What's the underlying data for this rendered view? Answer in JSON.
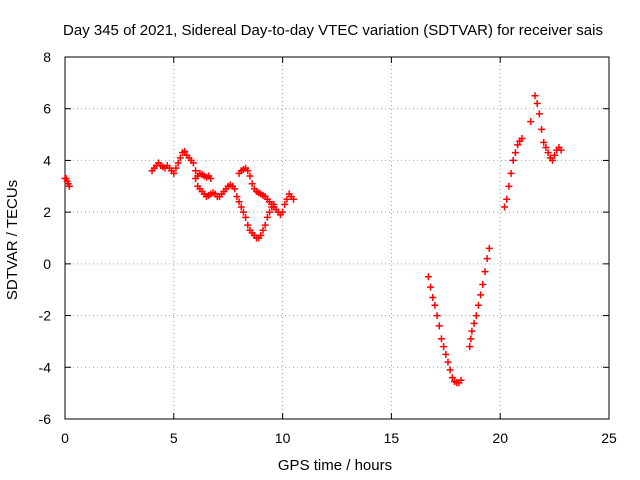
{
  "chart_data": {
    "type": "scatter",
    "title": "Day 345 of 2021, Sidereal Day-to-day VTEC variation (SDTVAR) for receiver sais",
    "xlabel": "GPS time / hours",
    "ylabel": "SDTVAR / TECUs",
    "xlim": [
      0,
      25
    ],
    "ylim": [
      -6,
      8
    ],
    "x_ticks": [
      0,
      5,
      10,
      15,
      20,
      25
    ],
    "y_ticks": [
      -6,
      -4,
      -2,
      0,
      2,
      4,
      6,
      8
    ],
    "grid": true,
    "marker": "+",
    "series": [
      {
        "color": "#ff0000",
        "points": [
          [
            0.0,
            3.3
          ],
          [
            0.05,
            3.3
          ],
          [
            0.1,
            3.2
          ],
          [
            0.15,
            3.1
          ],
          [
            0.2,
            3.0
          ],
          [
            4.0,
            3.6
          ],
          [
            4.1,
            3.7
          ],
          [
            4.2,
            3.8
          ],
          [
            4.3,
            3.9
          ],
          [
            4.4,
            3.8
          ],
          [
            4.5,
            3.75
          ],
          [
            4.6,
            3.7
          ],
          [
            4.7,
            3.8
          ],
          [
            4.8,
            3.7
          ],
          [
            4.9,
            3.6
          ],
          [
            5.0,
            3.5
          ],
          [
            5.1,
            3.7
          ],
          [
            5.2,
            3.9
          ],
          [
            5.3,
            4.1
          ],
          [
            5.4,
            4.3
          ],
          [
            5.5,
            4.35
          ],
          [
            5.6,
            4.2
          ],
          [
            5.7,
            4.1
          ],
          [
            5.8,
            4.0
          ],
          [
            5.9,
            3.9
          ],
          [
            6.0,
            3.6
          ],
          [
            6.1,
            3.4
          ],
          [
            6.0,
            3.3
          ],
          [
            6.1,
            3.0
          ],
          [
            6.2,
            2.9
          ],
          [
            6.3,
            2.8
          ],
          [
            6.4,
            2.7
          ],
          [
            6.5,
            2.6
          ],
          [
            6.6,
            2.65
          ],
          [
            6.7,
            2.7
          ],
          [
            6.8,
            2.75
          ],
          [
            6.9,
            2.7
          ],
          [
            7.0,
            2.6
          ],
          [
            7.1,
            2.6
          ],
          [
            7.2,
            2.7
          ],
          [
            7.3,
            2.8
          ],
          [
            7.4,
            2.9
          ],
          [
            7.5,
            3.0
          ],
          [
            7.6,
            3.05
          ],
          [
            7.7,
            3.0
          ],
          [
            7.8,
            2.9
          ],
          [
            6.2,
            3.5
          ],
          [
            6.3,
            3.45
          ],
          [
            6.4,
            3.4
          ],
          [
            6.5,
            3.35
          ],
          [
            6.6,
            3.4
          ],
          [
            6.7,
            3.3
          ],
          [
            7.9,
            2.6
          ],
          [
            8.0,
            2.4
          ],
          [
            8.1,
            2.2
          ],
          [
            8.2,
            2.0
          ],
          [
            8.3,
            1.8
          ],
          [
            8.4,
            1.5
          ],
          [
            8.5,
            1.3
          ],
          [
            8.6,
            1.2
          ],
          [
            8.7,
            1.1
          ],
          [
            8.8,
            1.0
          ],
          [
            8.9,
            1.0
          ],
          [
            9.0,
            1.1
          ],
          [
            9.1,
            1.3
          ],
          [
            9.2,
            1.5
          ],
          [
            9.3,
            1.8
          ],
          [
            9.4,
            2.0
          ],
          [
            9.5,
            2.2
          ],
          [
            9.6,
            2.3
          ],
          [
            8.0,
            3.5
          ],
          [
            8.1,
            3.6
          ],
          [
            8.2,
            3.65
          ],
          [
            8.3,
            3.7
          ],
          [
            8.4,
            3.6
          ],
          [
            8.5,
            3.4
          ],
          [
            8.6,
            3.1
          ],
          [
            8.7,
            2.9
          ],
          [
            8.8,
            2.8
          ],
          [
            8.9,
            2.75
          ],
          [
            9.0,
            2.7
          ],
          [
            9.1,
            2.65
          ],
          [
            9.2,
            2.6
          ],
          [
            9.3,
            2.5
          ],
          [
            9.4,
            2.4
          ],
          [
            9.5,
            2.3
          ],
          [
            9.6,
            2.2
          ],
          [
            9.7,
            2.1
          ],
          [
            9.8,
            2.0
          ],
          [
            9.9,
            1.9
          ],
          [
            10.0,
            2.0
          ],
          [
            10.1,
            2.3
          ],
          [
            10.2,
            2.5
          ],
          [
            10.3,
            2.7
          ],
          [
            10.4,
            2.6
          ],
          [
            10.5,
            2.5
          ],
          [
            16.7,
            -0.5
          ],
          [
            16.8,
            -0.9
          ],
          [
            16.9,
            -1.3
          ],
          [
            17.0,
            -1.6
          ],
          [
            17.1,
            -2.0
          ],
          [
            17.2,
            -2.4
          ],
          [
            17.3,
            -2.9
          ],
          [
            17.4,
            -3.2
          ],
          [
            17.5,
            -3.5
          ],
          [
            17.6,
            -3.8
          ],
          [
            17.7,
            -4.1
          ],
          [
            17.8,
            -4.4
          ],
          [
            17.9,
            -4.55
          ],
          [
            18.0,
            -4.6
          ],
          [
            18.1,
            -4.6
          ],
          [
            18.2,
            -4.5
          ],
          [
            18.6,
            -3.2
          ],
          [
            18.65,
            -2.9
          ],
          [
            18.7,
            -2.6
          ],
          [
            18.8,
            -2.3
          ],
          [
            18.9,
            -2.0
          ],
          [
            19.0,
            -1.6
          ],
          [
            19.1,
            -1.2
          ],
          [
            19.2,
            -0.8
          ],
          [
            19.3,
            -0.3
          ],
          [
            19.4,
            0.2
          ],
          [
            19.5,
            0.6
          ],
          [
            20.2,
            2.2
          ],
          [
            20.3,
            2.5
          ],
          [
            20.4,
            3.0
          ],
          [
            20.5,
            3.5
          ],
          [
            20.6,
            4.0
          ],
          [
            20.7,
            4.3
          ],
          [
            20.8,
            4.6
          ],
          [
            20.9,
            4.75
          ],
          [
            21.0,
            4.85
          ],
          [
            21.4,
            5.5
          ],
          [
            21.6,
            6.5
          ],
          [
            21.7,
            6.2
          ],
          [
            21.8,
            5.8
          ],
          [
            21.9,
            5.2
          ],
          [
            22.0,
            4.7
          ],
          [
            22.1,
            4.5
          ],
          [
            22.2,
            4.3
          ],
          [
            22.3,
            4.1
          ],
          [
            22.4,
            4.0
          ],
          [
            22.5,
            4.2
          ],
          [
            22.6,
            4.4
          ],
          [
            22.7,
            4.5
          ],
          [
            22.8,
            4.4
          ]
        ]
      }
    ]
  }
}
